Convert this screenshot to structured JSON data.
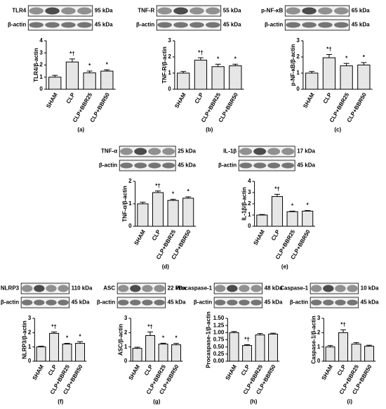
{
  "chart_data": [
    {
      "type": "bar",
      "panel": "(a)",
      "blot": {
        "protein": "TLR4",
        "protein_kda": "95 kDa",
        "control": "β-actin",
        "control_kda": "45 kDa"
      },
      "ylabel": "TLR4/β-actin",
      "categories": [
        "SHAM",
        "CLP",
        "CLP+BBR25",
        "CLP+BBR50"
      ],
      "values": [
        1.0,
        2.25,
        1.35,
        1.5
      ],
      "errors": [
        0.15,
        0.25,
        0.15,
        0.1
      ],
      "markers": [
        null,
        "*†",
        "*",
        "*"
      ],
      "ylim": [
        0,
        4
      ],
      "yticks": [
        0,
        1,
        2,
        3,
        4
      ],
      "color": "#e6e6e6"
    },
    {
      "type": "bar",
      "panel": "(b)",
      "blot": {
        "protein": "TNF-R",
        "protein_kda": "55 kDa",
        "control": "β-actin",
        "control_kda": "45 kDa"
      },
      "ylabel": "TNF-R/β-actin",
      "categories": [
        "SHAM",
        "CLP",
        "CLP+BBR25",
        "CLP+BBR50"
      ],
      "values": [
        1.0,
        1.8,
        1.4,
        1.45
      ],
      "errors": [
        0.1,
        0.15,
        0.15,
        0.1
      ],
      "markers": [
        null,
        "*†",
        "*",
        "*"
      ],
      "ylim": [
        0,
        3
      ],
      "yticks": [
        0,
        1,
        2,
        3
      ],
      "color": "#e6e6e6"
    },
    {
      "type": "bar",
      "panel": "(c)",
      "blot": {
        "protein": "p-NF-κB",
        "protein_kda": "65 kDa",
        "control": "β-actin",
        "control_kda": "45 kDa"
      },
      "ylabel": "p-NF-κB/β-actin",
      "categories": [
        "SHAM",
        "CLP",
        "CLP+BBR25",
        "CLP+BBR50"
      ],
      "values": [
        1.0,
        1.95,
        1.45,
        1.5
      ],
      "errors": [
        0.1,
        0.2,
        0.15,
        0.15
      ],
      "markers": [
        null,
        "*†",
        "*",
        "*"
      ],
      "ylim": [
        0,
        3
      ],
      "yticks": [
        0,
        1,
        2,
        3
      ],
      "color": "#e6e6e6"
    },
    {
      "type": "bar",
      "panel": "(d)",
      "blot": {
        "protein": "TNF-α",
        "protein_kda": "25 kDa",
        "control": "β-actin",
        "control_kda": "45 kDa"
      },
      "ylabel": "TNF-α/β-actin",
      "categories": [
        "SHAM",
        "CLP",
        "CLP+BBR25",
        "CLP+BBR50"
      ],
      "values": [
        1.0,
        1.5,
        1.15,
        1.25
      ],
      "errors": [
        0.07,
        0.07,
        0.05,
        0.06
      ],
      "markers": [
        null,
        "*†",
        "*",
        "*"
      ],
      "ylim": [
        0,
        2
      ],
      "yticks": [
        0,
        1,
        2
      ],
      "color": "#e6e6e6"
    },
    {
      "type": "bar",
      "panel": "(e)",
      "blot": {
        "protein": "IL-1β",
        "protein_kda": "17 kDa",
        "control": "β-actin",
        "control_kda": "45 kDa"
      },
      "ylabel": "IL-1β/β-actin",
      "categories": [
        "SHAM",
        "CLP",
        "CLP+BBR25",
        "CLP+BBR50"
      ],
      "values": [
        1.0,
        2.65,
        1.3,
        1.35
      ],
      "errors": [
        0.05,
        0.2,
        0.05,
        0.05
      ],
      "markers": [
        null,
        "*†",
        "*",
        "*"
      ],
      "ylim": [
        0,
        4
      ],
      "yticks": [
        0,
        1,
        2,
        3,
        4
      ],
      "color": "#e6e6e6"
    },
    {
      "type": "bar",
      "panel": "(f)",
      "blot": {
        "protein": "NLRP3",
        "protein_kda": "110 kDa",
        "control": "β-actin",
        "control_kda": "45 kDa"
      },
      "ylabel": "NLRP3/β-actin",
      "categories": [
        "SHAM",
        "CLP",
        "CLP+BBR25",
        "CLP+BBR50"
      ],
      "values": [
        1.0,
        1.95,
        1.2,
        1.25
      ],
      "errors": [
        0.05,
        0.1,
        0.05,
        0.12
      ],
      "markers": [
        null,
        "*†",
        "*",
        "*"
      ],
      "ylim": [
        0,
        3
      ],
      "yticks": [
        0,
        1,
        2,
        3
      ],
      "color": "#e6e6e6"
    },
    {
      "type": "bar",
      "panel": "(g)",
      "blot": {
        "protein": "ASC",
        "protein_kda": "22 kDa",
        "control": "β-actin",
        "control_kda": "45 kDa"
      },
      "ylabel": "ASC/β-actin",
      "categories": [
        "SHAM",
        "CLP",
        "CLP+BBR25",
        "CLP+BBR50"
      ],
      "values": [
        0.9,
        1.8,
        1.2,
        1.15
      ],
      "errors": [
        0.08,
        0.25,
        0.06,
        0.1
      ],
      "markers": [
        null,
        "*†",
        "*",
        "*"
      ],
      "ylim": [
        0,
        3
      ],
      "yticks": [
        0,
        1,
        2,
        3
      ],
      "color": "#e6e6e6"
    },
    {
      "type": "bar",
      "panel": "(h)",
      "blot": {
        "protein": "Procaspase-1",
        "protein_kda": "48 kDa",
        "control": "β-actin",
        "control_kda": "45 kDa"
      },
      "ylabel": "Procaspase-1/β-actin",
      "categories": [
        "SHAM",
        "CLP",
        "CLP+BBR25",
        "CLP+BBR50"
      ],
      "values": [
        1.0,
        0.55,
        0.92,
        0.95
      ],
      "errors": [
        0.04,
        0.03,
        0.05,
        0.03
      ],
      "markers": [
        null,
        "*†",
        null,
        null
      ],
      "ylim": [
        0,
        1.5
      ],
      "yticks": [
        {
          "value": 0,
          "label": "0.00"
        },
        {
          "value": 0.25,
          "label": "0.25"
        },
        {
          "value": 0.5,
          "label": "0.50"
        },
        {
          "value": 0.75,
          "label": "0.75"
        },
        {
          "value": 1,
          "label": "1.00"
        },
        {
          "value": 1.25,
          "label": "1.25"
        },
        {
          "value": 1.5,
          "label": "1.50"
        }
      ],
      "color": "#e6e6e6"
    },
    {
      "type": "bar",
      "panel": "(i)",
      "blot": {
        "protein": "Caspase-1",
        "protein_kda": "10 kDa",
        "control": "β-actin",
        "control_kda": "45 kDa"
      },
      "ylabel": "Caspase-1/β-actin",
      "categories": [
        "SHAM",
        "CLP",
        "CLP+BBR25",
        "CLP+BBR50"
      ],
      "values": [
        1.0,
        2.0,
        1.2,
        1.05
      ],
      "errors": [
        0.1,
        0.2,
        0.1,
        0.07
      ],
      "markers": [
        null,
        "*†",
        null,
        null
      ],
      "ylim": [
        0,
        3
      ],
      "yticks": [
        0,
        1,
        2,
        3
      ],
      "color": "#e6e6e6"
    }
  ]
}
